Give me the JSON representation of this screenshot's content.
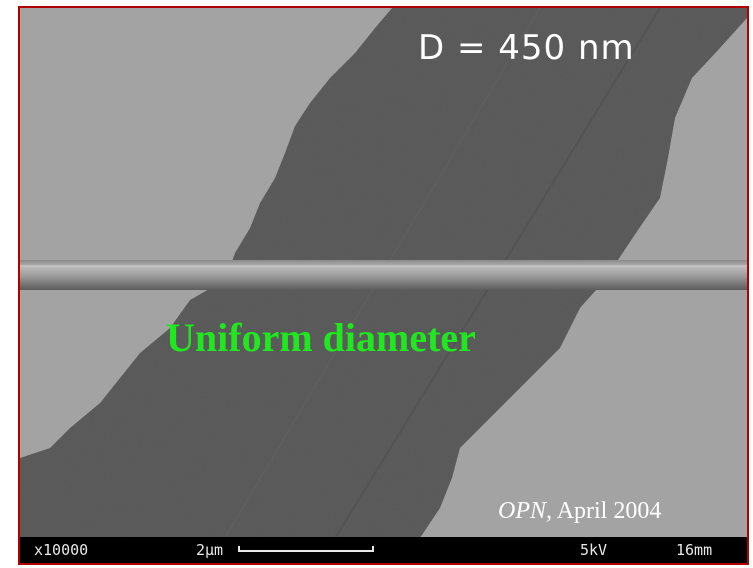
{
  "image": {
    "diameter_label": "D = 450 nm",
    "overlay_label": "Uniform diameter",
    "citation_journal": "OPN,",
    "citation_date": "April 2004",
    "overlay_color": "#1fe81f",
    "frame_color": "#b00000"
  },
  "databar": {
    "magnification": "x10000",
    "scale": "2μm",
    "voltage": "5kV",
    "working_distance": "16mm"
  }
}
